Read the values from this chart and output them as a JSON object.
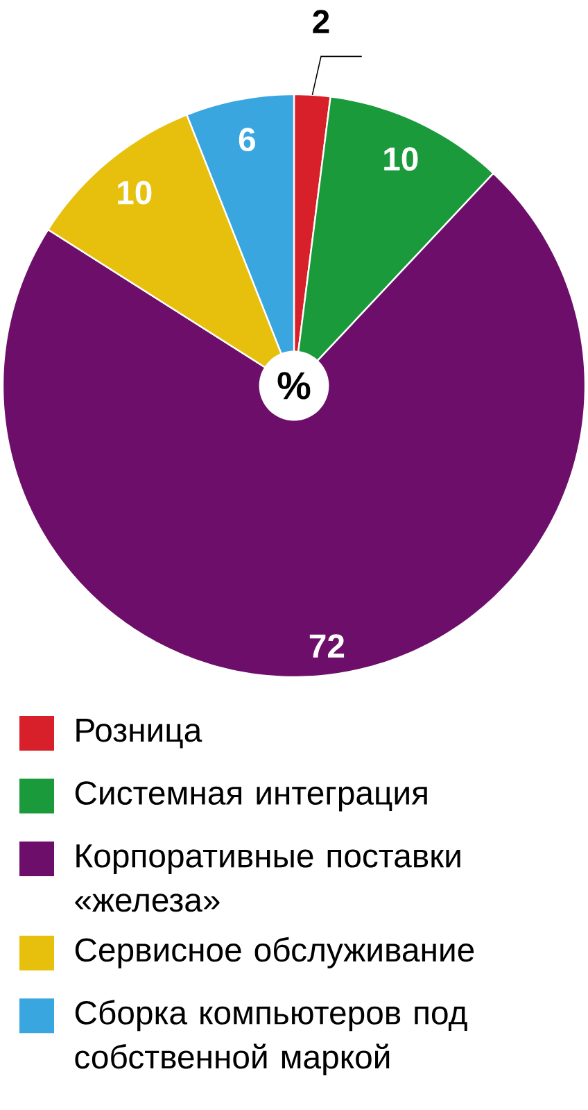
{
  "chart_data": {
    "type": "pie",
    "categories": [
      "Розница",
      "Системная интеграция",
      "Корпоративные поставки «железа»",
      "Сервисное обслуживание",
      "Сборка компьютеров под собственной маркой"
    ],
    "values": [
      2,
      10,
      72,
      10,
      6
    ],
    "colors": [
      "#d7202a",
      "#1a9a3a",
      "#6d0f6a",
      "#e6c00d",
      "#3aa6e0"
    ],
    "data_labels": true,
    "legend": "bottom",
    "annotations": [
      "%"
    ]
  }
}
